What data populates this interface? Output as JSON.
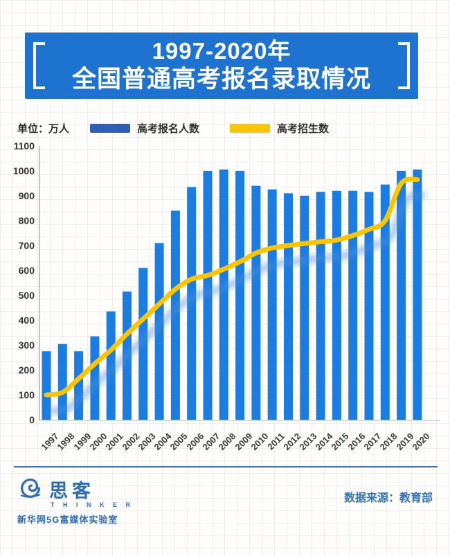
{
  "header": {
    "title_line1": "1997-2020年",
    "title_line2": "全国普通高考报名录取情况"
  },
  "chart": {
    "unit_label": "单位：万人",
    "legend": [
      {
        "label": "高考报名人数",
        "color": "#2e5eb8"
      },
      {
        "label": "高考招生数",
        "color": "#fdc500"
      }
    ]
  },
  "chart_data": {
    "type": "bar",
    "title": "1997-2020年全国普通高考报名录取情况",
    "unit": "万人",
    "categories": [
      1997,
      1998,
      1999,
      2000,
      2001,
      2002,
      2003,
      2004,
      2005,
      2006,
      2007,
      2008,
      2009,
      2010,
      2011,
      2012,
      2013,
      2014,
      2015,
      2016,
      2017,
      2018,
      2019,
      2020
    ],
    "series": [
      {
        "name": "高考报名人数",
        "type": "bar",
        "color": "#1b7ce2",
        "values": [
          275,
          305,
          275,
          335,
          435,
          515,
          610,
          710,
          840,
          935,
          1000,
          1005,
          1000,
          940,
          925,
          910,
          900,
          915,
          920,
          920,
          915,
          945,
          1000,
          1005
        ]
      },
      {
        "name": "高考招生数",
        "type": "line",
        "color": "#fdc500",
        "values": [
          100,
          110,
          165,
          225,
          280,
          345,
          405,
          465,
          525,
          565,
          580,
          605,
          635,
          670,
          690,
          700,
          708,
          715,
          722,
          740,
          765,
          800,
          950,
          965
        ]
      }
    ],
    "ylim": [
      0,
      1100
    ],
    "y_ticks": [
      0,
      100,
      200,
      300,
      400,
      500,
      600,
      700,
      800,
      900,
      1000,
      1100
    ],
    "grid": true,
    "legend_position": "top"
  },
  "footer": {
    "source": "数据来源：教育部",
    "logo_name": "思客",
    "logo_sub": "T H I N K E R",
    "logo_org": "新华网5G富媒体实验室"
  }
}
